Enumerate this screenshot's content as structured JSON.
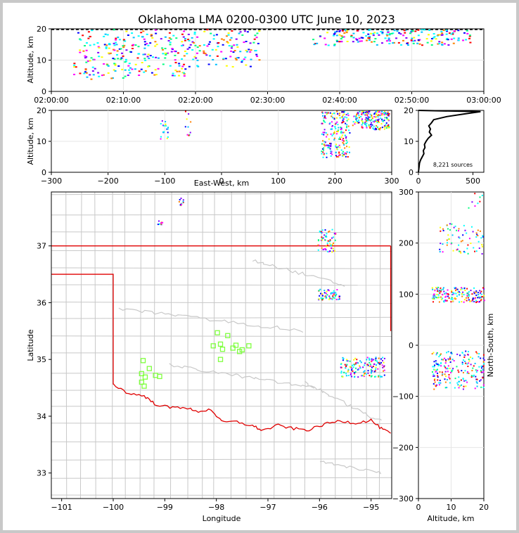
{
  "colors": {
    "state_border": "#e00000",
    "county_border": "#c8c8c8",
    "station": "#7fff3f",
    "background": "#ffffff"
  },
  "chart_data": [
    {
      "type": "scatter",
      "panel": "altitude-vs-time",
      "title": "Oklahoma LMA 0200-0300 UTC June 10, 2023",
      "xlabel": "",
      "ylabel": "Altitude, km",
      "xlim_minutes": [
        0,
        60
      ],
      "ylim": [
        0,
        20
      ],
      "xticks": [
        "02:00:00",
        "02:10:00",
        "02:20:00",
        "02:30:00",
        "02:40:00",
        "02:50:00",
        "03:00:00"
      ],
      "yticks": [
        "0",
        "10",
        "20"
      ],
      "clusters": [
        {
          "x_range": [
            3,
            10
          ],
          "y_range": [
            4,
            20
          ],
          "n": 110
        },
        {
          "x_range": [
            10,
            19
          ],
          "y_range": [
            5,
            20
          ],
          "n": 140
        },
        {
          "x_range": [
            19,
            29
          ],
          "y_range": [
            8,
            20
          ],
          "n": 110
        },
        {
          "x_range": [
            36,
            40
          ],
          "y_range": [
            12,
            20
          ],
          "n": 14
        },
        {
          "x_range": [
            39,
            45
          ],
          "y_range": [
            16,
            20
          ],
          "n": 60
        },
        {
          "x_range": [
            45,
            58
          ],
          "y_range": [
            15,
            20
          ],
          "n": 120
        }
      ]
    },
    {
      "type": "scatter",
      "panel": "altitude-vs-east-west",
      "xlabel": "East-West, km",
      "ylabel": "Altitude, km",
      "xlim": [
        -300,
        300
      ],
      "ylim": [
        0,
        20
      ],
      "xticks": [
        "−300",
        "−200",
        "−100",
        "0",
        "100",
        "200",
        "300"
      ],
      "yticks": [
        "0",
        "10",
        "20"
      ],
      "clusters": [
        {
          "x_range": [
            -110,
            -95
          ],
          "y_range": [
            11,
            17
          ],
          "n": 20
        },
        {
          "x_range": [
            -65,
            -55
          ],
          "y_range": [
            12,
            20
          ],
          "n": 10
        },
        {
          "x_range": [
            175,
            225
          ],
          "y_range": [
            5,
            20
          ],
          "n": 200
        },
        {
          "x_range": [
            230,
            295
          ],
          "y_range": [
            14,
            20
          ],
          "n": 190
        }
      ]
    },
    {
      "type": "line",
      "panel": "altitude-histogram",
      "xlim": [
        0,
        600
      ],
      "ylim": [
        0,
        20
      ],
      "xticks": [
        "0",
        "500"
      ],
      "yticks": [
        "0",
        "10",
        "20"
      ],
      "annotation": "8,221 sources",
      "profile": [
        [
          0,
          0
        ],
        [
          10,
          3
        ],
        [
          20,
          4
        ],
        [
          35,
          5
        ],
        [
          50,
          6
        ],
        [
          45,
          7
        ],
        [
          60,
          8
        ],
        [
          55,
          9
        ],
        [
          70,
          10
        ],
        [
          90,
          11
        ],
        [
          120,
          12
        ],
        [
          100,
          13
        ],
        [
          110,
          14
        ],
        [
          95,
          15
        ],
        [
          120,
          16
        ],
        [
          140,
          17
        ],
        [
          260,
          18
        ],
        [
          450,
          19
        ],
        [
          570,
          19.6
        ],
        [
          0,
          20
        ]
      ]
    },
    {
      "type": "scatter",
      "panel": "plan-view-map",
      "xlabel": "Longitude",
      "ylabel": "Latitude",
      "xlim": [
        -101.2,
        -94.6
      ],
      "ylim": [
        32.55,
        37.95
      ],
      "xticks": [
        "−101",
        "−100",
        "−99",
        "−98",
        "−97",
        "−96",
        "−95"
      ],
      "yticks": [
        "33",
        "34",
        "35",
        "36",
        "37"
      ],
      "stations": [
        [
          -97.98,
          35.47
        ],
        [
          -97.78,
          35.42
        ],
        [
          -98.06,
          35.24
        ],
        [
          -97.92,
          35.27
        ],
        [
          -97.88,
          35.18
        ],
        [
          -97.62,
          35.25
        ],
        [
          -97.68,
          35.2
        ],
        [
          -97.5,
          35.17
        ],
        [
          -97.37,
          35.24
        ],
        [
          -97.55,
          35.14
        ],
        [
          -97.92,
          35.0
        ],
        [
          -99.45,
          34.75
        ],
        [
          -99.3,
          34.84
        ],
        [
          -99.42,
          34.98
        ],
        [
          -99.45,
          34.6
        ],
        [
          -99.38,
          34.69
        ],
        [
          -99.18,
          34.72
        ],
        [
          -99.1,
          34.7
        ],
        [
          -99.4,
          34.53
        ]
      ],
      "clusters": [
        {
          "x_range": [
            -98.75,
            -98.65
          ],
          "y_range": [
            37.7,
            37.85
          ],
          "n": 12
        },
        {
          "x_range": [
            -99.15,
            -99.05
          ],
          "y_range": [
            37.38,
            37.45
          ],
          "n": 8
        },
        {
          "x_range": [
            -96.05,
            -95.7
          ],
          "y_range": [
            36.9,
            37.3
          ],
          "n": 60
        },
        {
          "x_range": [
            -96.05,
            -95.6
          ],
          "y_range": [
            36.05,
            36.25
          ],
          "n": 60
        },
        {
          "x_range": [
            -95.6,
            -94.75
          ],
          "y_range": [
            34.7,
            35.05
          ],
          "n": 150
        }
      ]
    },
    {
      "type": "scatter",
      "panel": "north-south-vs-altitude",
      "xlabel": "Altitude, km",
      "ylabel": "North-South, km",
      "xlim": [
        0,
        20
      ],
      "ylim": [
        -300,
        300
      ],
      "xticks": [
        "0",
        "10",
        "20"
      ],
      "yticks": [
        "−300",
        "−200",
        "−100",
        "0",
        "100",
        "200",
        "300"
      ],
      "clusters": [
        {
          "x_range": [
            15,
            20
          ],
          "y_range": [
            270,
            300
          ],
          "n": 8
        },
        {
          "x_range": [
            6,
            20
          ],
          "y_range": [
            180,
            240
          ],
          "n": 70
        },
        {
          "x_range": [
            4,
            20
          ],
          "y_range": [
            85,
            115
          ],
          "n": 160
        },
        {
          "x_range": [
            4,
            20
          ],
          "y_range": [
            -85,
            -10
          ],
          "n": 200
        }
      ]
    }
  ]
}
